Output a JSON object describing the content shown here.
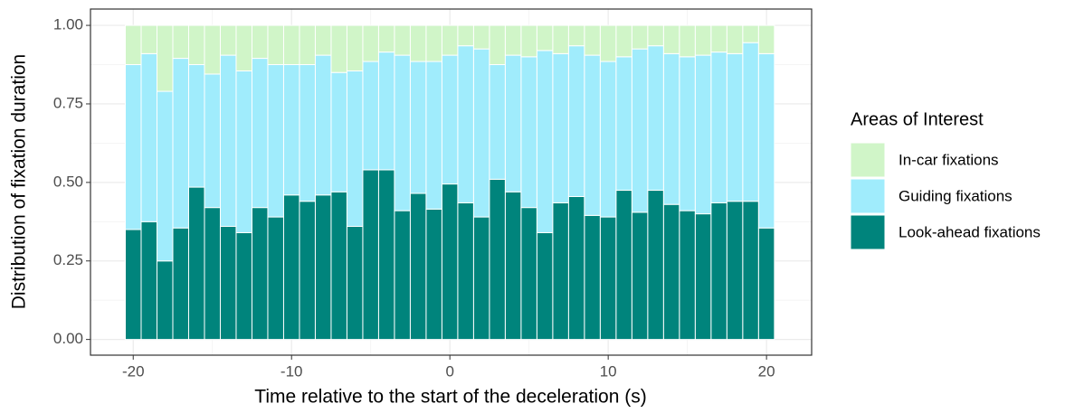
{
  "chart_data": {
    "type": "stacked-bar",
    "xlabel": "Time relative to the start of the deceleration (s)",
    "ylabel": "Distribution of fixation duration",
    "legend_title": "Areas of Interest",
    "legend": "right",
    "grid": true,
    "x": [
      -20,
      -19,
      -18,
      -17,
      -16,
      -15,
      -14,
      -13,
      -12,
      -11,
      -10,
      -9,
      -8,
      -7,
      -6,
      -5,
      -4,
      -3,
      -2,
      -1,
      0,
      1,
      2,
      3,
      4,
      5,
      6,
      7,
      8,
      9,
      10,
      11,
      12,
      13,
      14,
      15,
      16,
      17,
      18,
      19,
      20
    ],
    "xlim": [
      -22.7,
      22.85
    ],
    "xticks": [
      -20,
      -10,
      0,
      10,
      20
    ],
    "ylim": [
      -0.05,
      1.052
    ],
    "yticks": [
      {
        "value": 0,
        "label": "0.00"
      },
      {
        "value": 0.25,
        "label": "0.25"
      },
      {
        "value": 0.5,
        "label": "0.50"
      },
      {
        "value": 0.75,
        "label": "0.75"
      },
      {
        "value": 1,
        "label": "1.00"
      }
    ],
    "series": [
      {
        "name": "In-car fixations",
        "color": "#d0f5c8",
        "values": [
          0.125,
          0.09,
          0.21,
          0.105,
          0.125,
          0.155,
          0.095,
          0.145,
          0.105,
          0.125,
          0.125,
          0.125,
          0.095,
          0.15,
          0.145,
          0.115,
          0.085,
          0.095,
          0.115,
          0.115,
          0.095,
          0.065,
          0.075,
          0.125,
          0.095,
          0.1,
          0.08,
          0.09,
          0.065,
          0.095,
          0.115,
          0.1,
          0.075,
          0.065,
          0.09,
          0.1,
          0.095,
          0.085,
          0.09,
          0.055,
          0.09
        ]
      },
      {
        "name": "Guiding fixations",
        "color": "#a0ecfc",
        "values": [
          0.525,
          0.535,
          0.54,
          0.54,
          0.39,
          0.425,
          0.545,
          0.515,
          0.475,
          0.485,
          0.415,
          0.435,
          0.445,
          0.38,
          0.495,
          0.345,
          0.375,
          0.495,
          0.42,
          0.47,
          0.41,
          0.5,
          0.535,
          0.365,
          0.435,
          0.48,
          0.58,
          0.475,
          0.48,
          0.51,
          0.495,
          0.425,
          0.52,
          0.46,
          0.48,
          0.49,
          0.505,
          0.48,
          0.47,
          0.505,
          0.555
        ]
      },
      {
        "name": "Look-ahead fixations",
        "color": "#00847c",
        "values": [
          0.35,
          0.375,
          0.25,
          0.355,
          0.485,
          0.42,
          0.36,
          0.34,
          0.42,
          0.39,
          0.46,
          0.44,
          0.46,
          0.47,
          0.36,
          0.54,
          0.54,
          0.41,
          0.465,
          0.415,
          0.495,
          0.435,
          0.39,
          0.51,
          0.47,
          0.42,
          0.34,
          0.435,
          0.455,
          0.395,
          0.39,
          0.475,
          0.405,
          0.475,
          0.43,
          0.41,
          0.4,
          0.435,
          0.44,
          0.44,
          0.355
        ]
      }
    ]
  }
}
